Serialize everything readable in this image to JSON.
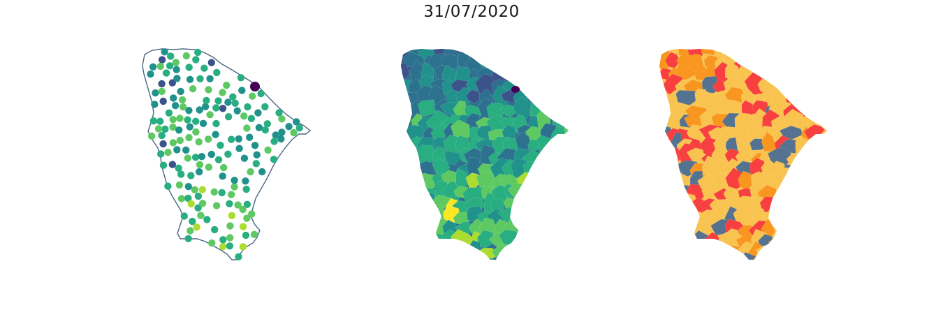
{
  "title": "31/07/2020",
  "colors": {
    "outline": "#4a6785",
    "viridis": [
      "#440154",
      "#3b528b",
      "#2c728e",
      "#21918c",
      "#28ae80",
      "#5ec962",
      "#addc30",
      "#fde725"
    ],
    "risk": [
      "#557391",
      "#f9c34f",
      "#f9961f",
      "#f84040"
    ]
  },
  "panels": [
    {
      "name": "station-points-map",
      "kind": "points"
    },
    {
      "name": "interpolated-surface-map",
      "kind": "continuous"
    },
    {
      "name": "risk-class-map",
      "kind": "classes"
    }
  ]
}
